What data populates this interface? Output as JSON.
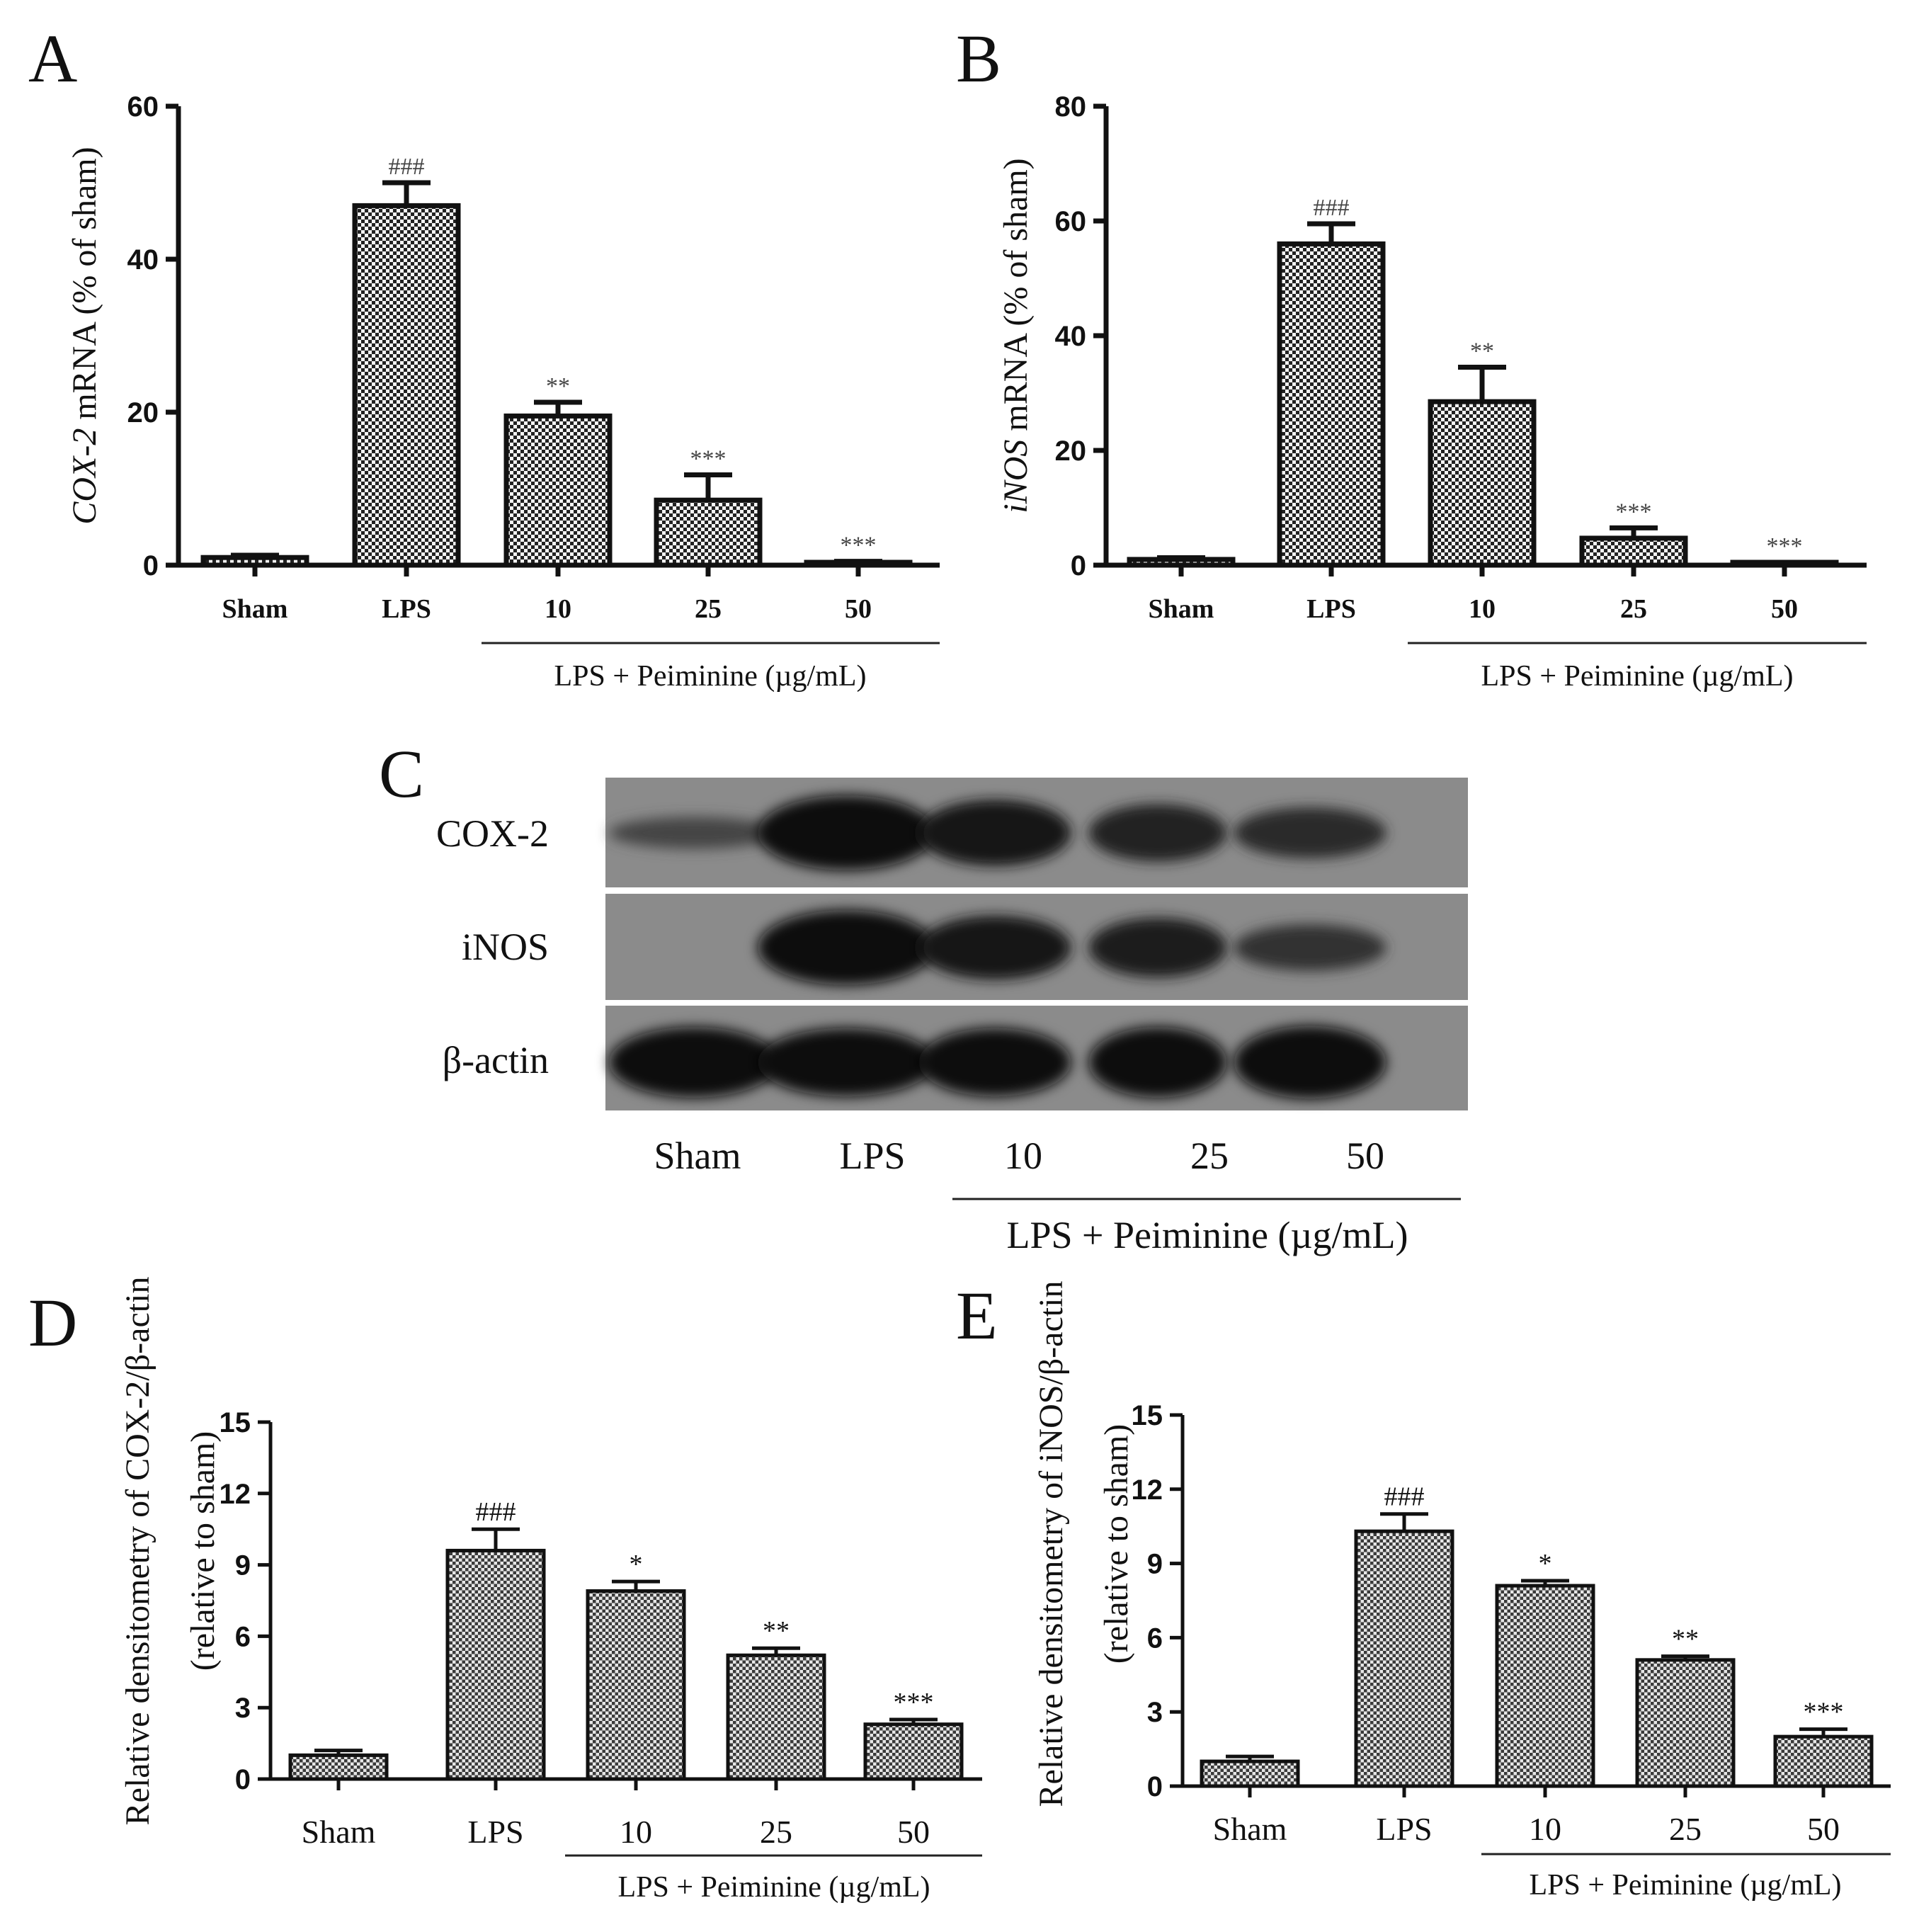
{
  "chart_data": [
    {
      "panel": "A",
      "type": "bar",
      "categories": [
        "Sham",
        "LPS",
        "10",
        "25",
        "50"
      ],
      "values": [
        1,
        47,
        19.5,
        8.5,
        0.3
      ],
      "errors": [
        0.3,
        3.0,
        1.8,
        3.3,
        0.2
      ],
      "significance": [
        "",
        "###",
        "**",
        "***",
        "***"
      ],
      "ylabel_italic": "COX-2",
      "ylabel_rest": " mRNA (% of sham)",
      "yticks": [
        "0",
        "20",
        "40",
        "60"
      ],
      "ylim": [
        0,
        60
      ],
      "group_label": "LPS + Peiminine (µg/mL)"
    },
    {
      "panel": "B",
      "type": "bar",
      "categories": [
        "Sham",
        "LPS",
        "10",
        "25",
        "50"
      ],
      "values": [
        1,
        56,
        28.5,
        4.7,
        0.3
      ],
      "errors": [
        0.3,
        3.5,
        6.0,
        1.8,
        0.2
      ],
      "significance": [
        "",
        "###",
        "**",
        "***",
        "***"
      ],
      "ylabel_italic": "iNOS",
      "ylabel_rest": " mRNA (% of sham)",
      "yticks": [
        "0",
        "20",
        "40",
        "60",
        "80"
      ],
      "ylim": [
        0,
        80
      ],
      "group_label": "LPS + Peiminine (µg/mL)"
    },
    {
      "panel": "D",
      "type": "bar",
      "categories": [
        "Sham",
        "LPS",
        "10",
        "25",
        "50"
      ],
      "values": [
        1.0,
        9.6,
        7.9,
        5.2,
        2.3
      ],
      "errors": [
        0.2,
        0.9,
        0.4,
        0.3,
        0.2
      ],
      "significance": [
        "",
        "###",
        "*",
        "**",
        "***"
      ],
      "ylabel_line1": "Relative densitometry of COX-2/β-actin",
      "ylabel_line2": "(relative to sham)",
      "yticks": [
        "0",
        "3",
        "6",
        "9",
        "12",
        "15"
      ],
      "ylim": [
        0,
        15
      ],
      "group_label": "LPS + Peiminine (µg/mL)"
    },
    {
      "panel": "E",
      "type": "bar",
      "categories": [
        "Sham",
        "LPS",
        "10",
        "25",
        "50"
      ],
      "values": [
        1.0,
        10.3,
        8.1,
        5.1,
        2.0
      ],
      "errors": [
        0.2,
        0.7,
        0.2,
        0.15,
        0.3
      ],
      "significance": [
        "",
        "###",
        "*",
        "**",
        "***"
      ],
      "ylabel_line1": "Relative densitometry of iNOS/β-actin",
      "ylabel_line2": "(relative to sham)",
      "yticks": [
        "0",
        "3",
        "6",
        "9",
        "12",
        "15"
      ],
      "ylim": [
        0,
        15
      ],
      "group_label": "LPS + Peiminine (µg/mL)"
    }
  ],
  "blot": {
    "panel": "C",
    "rows": [
      "COX-2",
      "iNOS",
      "β-actin"
    ],
    "lanes": [
      "Sham",
      "LPS",
      "10",
      "25",
      "50"
    ],
    "intensity": [
      [
        0.02,
        1.0,
        0.8,
        0.6,
        0.45
      ],
      [
        0.0,
        1.0,
        0.75,
        0.65,
        0.35
      ],
      [
        0.9,
        0.85,
        0.85,
        0.9,
        0.95
      ]
    ],
    "group_label": "LPS + Peiminine (µg/mL)"
  }
}
